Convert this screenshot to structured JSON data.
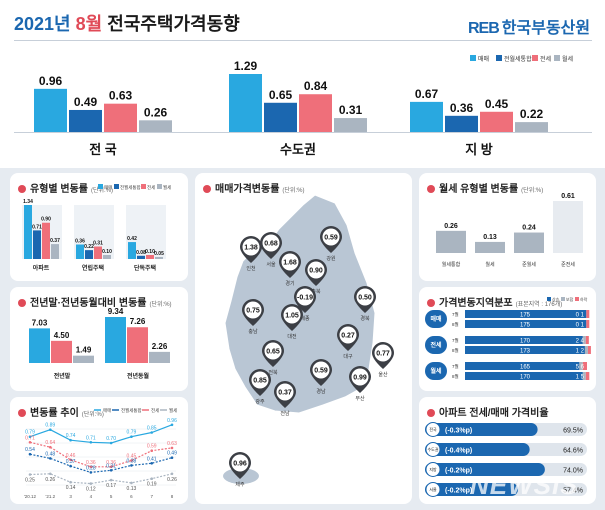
{
  "header": {
    "year": "2021년",
    "month": "8월",
    "title": "전국주택가격동향",
    "logo_mark": "REB",
    "logo_text": "한국부동산원"
  },
  "top_legend": [
    "매매",
    "전월세통합",
    "전세",
    "월세"
  ],
  "colors": {
    "sale": "#29a8e0",
    "combined": "#1b67b0",
    "jeonse": "#ef6f7a",
    "wolse": "#aab5c1",
    "accent": "#e04a57",
    "map": "#b9c6d4"
  },
  "chart_data": [
    {
      "type": "bar",
      "panel": "top-regions",
      "categories": [
        "전 국",
        "수도권",
        "지 방"
      ],
      "series": [
        {
          "name": "매매",
          "values": [
            0.96,
            1.29,
            0.67
          ]
        },
        {
          "name": "전월세통합",
          "values": [
            0.49,
            0.65,
            0.36
          ]
        },
        {
          "name": "전세",
          "values": [
            0.63,
            0.84,
            0.45
          ]
        },
        {
          "name": "월세",
          "values": [
            0.26,
            0.31,
            0.22
          ]
        }
      ]
    },
    {
      "type": "bar",
      "panel": "type-change",
      "title": "유형별 변동률",
      "unit": "(단위:%)",
      "categories": [
        "아파트",
        "연립주택",
        "단독주택"
      ],
      "legend": [
        "매매",
        "전월세통합",
        "전세",
        "월세"
      ],
      "series": [
        {
          "name": "매매",
          "values": [
            1.34,
            0.36,
            0.42
          ]
        },
        {
          "name": "전월세통합",
          "values": [
            0.71,
            0.22,
            0.08
          ]
        },
        {
          "name": "전세",
          "values": [
            0.9,
            0.31,
            0.1
          ]
        },
        {
          "name": "월세",
          "values": [
            0.37,
            0.1,
            0.05
          ]
        }
      ]
    },
    {
      "type": "bar",
      "panel": "ratio-change",
      "title": "전년말·전년동월대비 변동률",
      "unit": "(단위:%)",
      "categories": [
        "전년말",
        "전년동월"
      ],
      "series": [
        {
          "name": "매매",
          "values": [
            7.03,
            9.34
          ]
        },
        {
          "name": "전세",
          "values": [
            4.5,
            7.26
          ]
        },
        {
          "name": "월세",
          "values": [
            1.49,
            2.26
          ]
        }
      ]
    },
    {
      "type": "line",
      "panel": "trend",
      "title": "변동률 추이",
      "unit": "(단위:%)",
      "legend": [
        "매매",
        "전월세통합",
        "전세",
        "월세"
      ],
      "x": [
        "'20.12",
        "'21.2",
        "3",
        "4",
        "5",
        "6",
        "7",
        "8"
      ],
      "series": [
        {
          "name": "매매",
          "values": [
            0.79,
            0.89,
            0.74,
            0.71,
            0.7,
            0.79,
            0.85,
            0.96
          ]
        },
        {
          "name": "전세",
          "values": [
            0.71,
            0.64,
            0.46,
            0.36,
            0.36,
            0.45,
            0.59,
            0.63
          ]
        },
        {
          "name": "전월세통합",
          "values": [
            0.54,
            0.48,
            0.37,
            0.28,
            0.31,
            0.38,
            0.41,
            0.49
          ]
        },
        {
          "name": "월세",
          "values": [
            0.25,
            0.26,
            0.14,
            0.12,
            0.17,
            0.13,
            0.19,
            0.26
          ]
        }
      ]
    },
    {
      "type": "bar",
      "panel": "wolse-type",
      "title": "월세 유형별 변동률",
      "unit": "(단위:%)",
      "categories": [
        "월세통합",
        "월세",
        "준월세",
        "준전세"
      ],
      "values": [
        0.26,
        0.13,
        0.24,
        0.61
      ]
    }
  ],
  "map": {
    "title": "매매가격변동률",
    "unit": "(단위:%)",
    "regions": [
      {
        "name": "인천",
        "value": "1.38"
      },
      {
        "name": "서울",
        "value": "0.68"
      },
      {
        "name": "경기",
        "value": "1.68"
      },
      {
        "name": "강원",
        "value": "0.59"
      },
      {
        "name": "충북",
        "value": "0.90"
      },
      {
        "name": "세종",
        "value": "-0.19"
      },
      {
        "name": "충남",
        "value": "0.75"
      },
      {
        "name": "대전",
        "value": "1.05"
      },
      {
        "name": "경북",
        "value": "0.50"
      },
      {
        "name": "전북",
        "value": "0.65"
      },
      {
        "name": "대구",
        "value": "0.27"
      },
      {
        "name": "울산",
        "value": "0.77"
      },
      {
        "name": "경남",
        "value": "0.59"
      },
      {
        "name": "부산",
        "value": "0.99"
      },
      {
        "name": "광주",
        "value": "0.85"
      },
      {
        "name": "전남",
        "value": "0.37"
      },
      {
        "name": "제주",
        "value": "0.96"
      }
    ]
  },
  "distribution": {
    "title": "가격변동지역분포",
    "unit": "(표본지역 : 176개)",
    "legend": [
      "상승",
      "보합",
      "하락"
    ],
    "groups": [
      {
        "name": "매매",
        "rows": [
          {
            "month": "7월",
            "values": [
              175,
              0,
              1
            ]
          },
          {
            "month": "8월",
            "values": [
              175,
              0,
              1
            ]
          }
        ]
      },
      {
        "name": "전세",
        "rows": [
          {
            "month": "7월",
            "values": [
              170,
              2,
              4
            ]
          },
          {
            "month": "8월",
            "values": [
              173,
              1,
              2
            ]
          }
        ]
      },
      {
        "name": "월세",
        "rows": [
          {
            "month": "7월",
            "values": [
              165,
              5,
              6
            ]
          },
          {
            "month": "8월",
            "values": [
              170,
              1,
              5
            ]
          }
        ]
      }
    ]
  },
  "apt_ratio": {
    "title": "아파트 전세/매매 가격비율",
    "rows": [
      {
        "region": "전국",
        "change": "(-0.3%p)",
        "value": "69.5%",
        "pct": 69.5
      },
      {
        "region": "수도권",
        "change": "(-0.4%p)",
        "value": "64.6%",
        "pct": 64.6
      },
      {
        "region": "지방",
        "change": "(-0.2%p)",
        "value": "74.0%",
        "pct": 74.0
      },
      {
        "region": "서울",
        "change": "(-0.2%p)",
        "value": "57.4%",
        "pct": 57.4
      }
    ]
  },
  "watermark": "NEWSIS"
}
